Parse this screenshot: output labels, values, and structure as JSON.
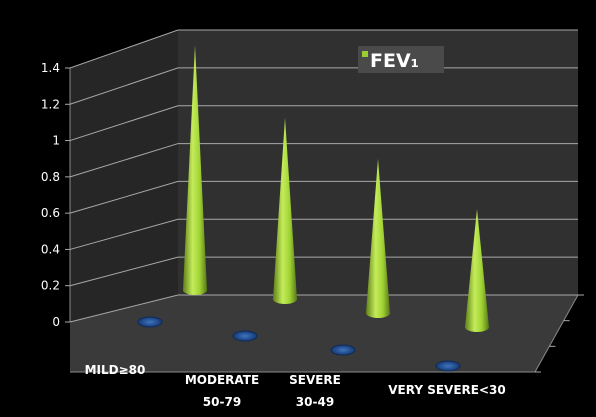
{
  "chart_data": {
    "type": "bar",
    "style": "3d-cones",
    "categories": [
      "MILD≥80",
      "MODERATE 50-79",
      "SEVERE 30-49",
      "VERY SEVERE<30"
    ],
    "series": [
      {
        "name": "",
        "values": [
          0,
          0,
          0,
          0
        ],
        "color": "#1f4f8f"
      },
      {
        "name": "FEV₁",
        "values": [
          1.35,
          1.0,
          0.85,
          0.65
        ],
        "color": "#9acd32"
      }
    ],
    "y_ticks": [
      "0",
      "0.2",
      "0.4",
      "0.6",
      "0.8",
      "1",
      "1.2",
      "1.4"
    ],
    "ylim": [
      0,
      1.4
    ],
    "grid": true,
    "legend_position": "top-right",
    "title": "",
    "xlabel": "",
    "ylabel": "",
    "colors": {
      "background": "#000000",
      "back_wall": "#303030",
      "side_wall": "#262626",
      "floor": "#3a3a3a",
      "gridline": "#a8a8a8",
      "label_text": "#ffffff",
      "legend_bg": "#4a4a4a"
    }
  }
}
